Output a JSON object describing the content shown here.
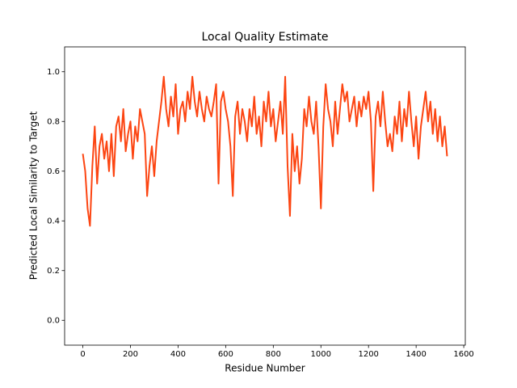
{
  "chart_data": {
    "type": "line",
    "title": "Local Quality Estimate",
    "x_label": "Residue Number",
    "y_label": "Predicted Local Similarity to Target",
    "x": [
      0,
      10,
      20,
      30,
      40,
      50,
      60,
      70,
      80,
      90,
      100,
      110,
      120,
      130,
      140,
      150,
      160,
      170,
      180,
      190,
      200,
      210,
      220,
      230,
      240,
      250,
      260,
      270,
      280,
      290,
      300,
      310,
      320,
      330,
      340,
      350,
      360,
      370,
      380,
      390,
      400,
      410,
      420,
      430,
      440,
      450,
      460,
      470,
      480,
      490,
      500,
      510,
      520,
      530,
      540,
      550,
      560,
      570,
      580,
      590,
      600,
      610,
      620,
      630,
      640,
      650,
      660,
      670,
      680,
      690,
      700,
      710,
      720,
      730,
      740,
      750,
      760,
      770,
      780,
      790,
      800,
      810,
      820,
      830,
      840,
      850,
      860,
      870,
      880,
      890,
      900,
      910,
      920,
      930,
      940,
      950,
      960,
      970,
      980,
      990,
      1000,
      1010,
      1020,
      1030,
      1040,
      1050,
      1060,
      1070,
      1080,
      1090,
      1100,
      1110,
      1120,
      1130,
      1140,
      1150,
      1160,
      1170,
      1180,
      1190,
      1200,
      1210,
      1220,
      1230,
      1240,
      1250,
      1260,
      1270,
      1280,
      1290,
      1300,
      1310,
      1320,
      1330,
      1340,
      1350,
      1360,
      1370,
      1380,
      1390,
      1400,
      1410,
      1420,
      1430,
      1440,
      1450,
      1460,
      1470,
      1480,
      1490,
      1500,
      1510,
      1520,
      1530
    ],
    "series": [
      {
        "color": "#fc4512",
        "values": [
          0.67,
          0.6,
          0.45,
          0.38,
          0.62,
          0.78,
          0.55,
          0.7,
          0.75,
          0.65,
          0.72,
          0.6,
          0.75,
          0.58,
          0.78,
          0.82,
          0.72,
          0.85,
          0.68,
          0.75,
          0.8,
          0.65,
          0.78,
          0.72,
          0.85,
          0.8,
          0.75,
          0.5,
          0.62,
          0.7,
          0.58,
          0.72,
          0.8,
          0.88,
          0.98,
          0.85,
          0.78,
          0.9,
          0.82,
          0.95,
          0.75,
          0.85,
          0.88,
          0.8,
          0.92,
          0.85,
          0.98,
          0.88,
          0.82,
          0.92,
          0.85,
          0.8,
          0.9,
          0.85,
          0.82,
          0.88,
          0.95,
          0.55,
          0.88,
          0.92,
          0.85,
          0.8,
          0.7,
          0.5,
          0.82,
          0.88,
          0.75,
          0.85,
          0.8,
          0.72,
          0.85,
          0.78,
          0.9,
          0.75,
          0.82,
          0.7,
          0.88,
          0.8,
          0.92,
          0.78,
          0.85,
          0.72,
          0.8,
          0.88,
          0.75,
          0.98,
          0.62,
          0.42,
          0.75,
          0.6,
          0.7,
          0.55,
          0.65,
          0.85,
          0.78,
          0.9,
          0.8,
          0.75,
          0.88,
          0.7,
          0.45,
          0.78,
          0.95,
          0.85,
          0.8,
          0.7,
          0.88,
          0.75,
          0.85,
          0.95,
          0.88,
          0.92,
          0.8,
          0.85,
          0.9,
          0.78,
          0.88,
          0.82,
          0.9,
          0.85,
          0.92,
          0.8,
          0.52,
          0.82,
          0.88,
          0.78,
          0.92,
          0.8,
          0.7,
          0.75,
          0.68,
          0.82,
          0.75,
          0.88,
          0.72,
          0.85,
          0.78,
          0.92,
          0.8,
          0.7,
          0.82,
          0.65,
          0.78,
          0.85,
          0.92,
          0.8,
          0.88,
          0.75,
          0.85,
          0.72,
          0.82,
          0.7,
          0.78,
          0.66
        ]
      }
    ],
    "xlim": [
      -76.5,
      1606.5
    ],
    "xticks": [
      0,
      200,
      400,
      600,
      800,
      1000,
      1200,
      1400,
      1600
    ],
    "ylim": [
      -0.1,
      1.1
    ],
    "yticks": [
      {
        "value": 0,
        "label": "0.0"
      },
      0.2,
      0.4,
      0.6,
      0.8,
      {
        "value": 1,
        "label": "1.0"
      }
    ],
    "grid": false
  }
}
